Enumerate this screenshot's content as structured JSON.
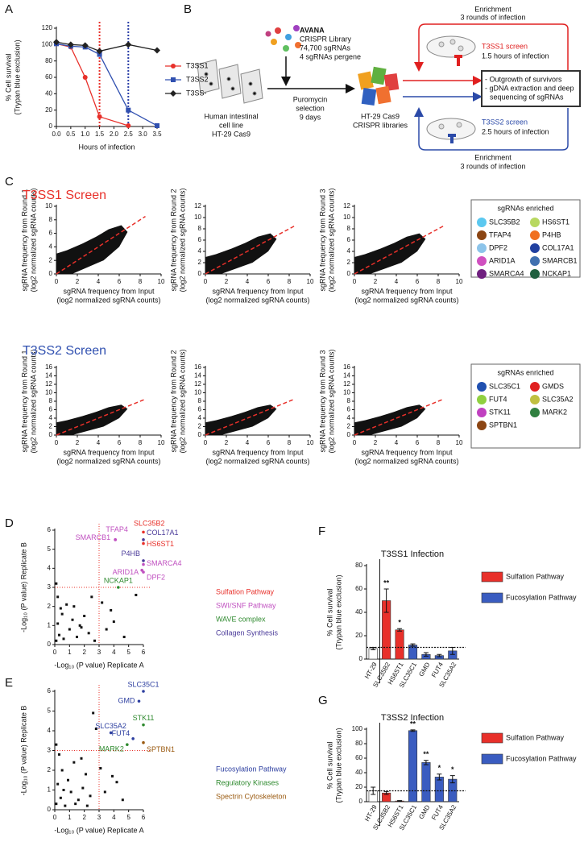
{
  "panel_labels": [
    "A",
    "B",
    "C",
    "D",
    "E",
    "F",
    "G"
  ],
  "diagram": {
    "library": [
      "AVANA",
      "CRISPR Library",
      "74,700 sgRNAs",
      "4 sgRNAs pergene"
    ],
    "cell_line": [
      "Human intestinal",
      "cell line",
      "HT-29 Cas9"
    ],
    "selection": [
      "Puromycin",
      "selection",
      "9 days"
    ],
    "libraries": [
      "HT-29 Cas9",
      "CRISPR libraries"
    ],
    "enrichment_top": [
      "Enrichment",
      "3 rounds of infection"
    ],
    "screen1": [
      "T3SS1 screen",
      "1.5 hours of infection"
    ],
    "output": [
      "- Outgrowth of survivors",
      "- gDNA extraction and deep",
      "sequencing of sgRNAs"
    ],
    "screen2": [
      "T3SS2 screen",
      "2.5 hours of infection"
    ],
    "enrichment_bottom": [
      "Enrichment",
      "3 rounds of infection"
    ]
  },
  "chart_data": [
    {
      "type": "line",
      "x": [
        0,
        0.5,
        1,
        1.5,
        2.5,
        3.5
      ],
      "xlim": [
        0,
        3.5
      ],
      "xticks": [
        {
          "value": 0,
          "label": "0.0"
        },
        0.5,
        {
          "value": 1,
          "label": "1.0"
        },
        1.5,
        {
          "value": 2,
          "label": "2.0"
        },
        2.5,
        {
          "value": 3,
          "label": "3.0"
        },
        3.5
      ],
      "ylim": [
        0,
        120
      ],
      "yticks": [
        0,
        20,
        40,
        60,
        80,
        100,
        120
      ],
      "xlabel": "Hours of infection",
      "ylabel": [
        "% Cell survival",
        "(Trypan blue exclusion)"
      ],
      "vlines": [
        {
          "x": 1.5,
          "color": "#e8302a"
        },
        {
          "x": 2.5,
          "color": "#2b3fa8"
        }
      ],
      "series": [
        {
          "name": "T3SS1",
          "color": "#e8302a",
          "marker": "circle",
          "values": [
            101,
            97,
            60,
            12,
            1,
            null
          ]
        },
        {
          "name": "T3SS2",
          "color": "#3050b0",
          "marker": "square",
          "values": [
            101,
            98,
            97,
            88,
            20,
            1
          ]
        },
        {
          "name": "T3SS-",
          "color": "#222222",
          "marker": "diamond",
          "values": [
            103,
            100,
            99,
            92,
            100,
            93
          ]
        }
      ]
    },
    {
      "type": "scatter",
      "title": "T3SS1 Screen",
      "title_color": "#e8302a",
      "xlim": [
        0,
        10
      ],
      "xticks": [
        0,
        2,
        4,
        6,
        8,
        10
      ],
      "ylim": [
        0,
        10
      ],
      "yticks": [
        0,
        2,
        4,
        6,
        8,
        10
      ],
      "xlabel": [
        "sgRNA frequency from Input",
        "(log2 normalized sgRNA counts)"
      ],
      "ylabel": [
        "sgRNA frequency from Round 1",
        "(log2 normalized sgRNA counts)"
      ],
      "diagonal": "#e8302a",
      "legend_title": "sgRNAs enriched",
      "legend": [
        {
          "name": "SLC35B2",
          "color": "#5bc8f0"
        },
        {
          "name": "HS6ST1",
          "color": "#b8d860"
        },
        {
          "name": "TFAP4",
          "color": "#8b4513"
        },
        {
          "name": "P4HB",
          "color": "#f07020"
        },
        {
          "name": "DPF2",
          "color": "#8cc4ea"
        },
        {
          "name": "COL17A1",
          "color": "#2040a0"
        },
        {
          "name": "ARID1A",
          "color": "#d050c0"
        },
        {
          "name": "SMARCB1",
          "color": "#4070b0"
        },
        {
          "name": "SMARCA4",
          "color": "#702080"
        },
        {
          "name": "NCKAP1",
          "color": "#206040"
        }
      ]
    },
    {
      "type": "scatter",
      "xlim": [
        0,
        10
      ],
      "xticks": [
        0,
        2,
        4,
        6,
        8,
        10
      ],
      "ylim": [
        0,
        12
      ],
      "yticks": [
        0,
        2,
        4,
        6,
        8,
        10,
        12
      ],
      "xlabel": [
        "sgRNA frequency from Input",
        "(log2 normalized sgRNA counts)"
      ],
      "ylabel": [
        "sgRNA frequency from Round 2",
        "(log2 normalized sgRNA counts)"
      ],
      "diagonal": "#e8302a"
    },
    {
      "type": "scatter",
      "xlim": [
        0,
        10
      ],
      "xticks": [
        0,
        2,
        4,
        6,
        8,
        10
      ],
      "ylim": [
        0,
        12
      ],
      "yticks": [
        0,
        2,
        4,
        6,
        8,
        10,
        12
      ],
      "xlabel": [
        "sgRNA frequency from Input",
        "(log2 normalized sgRNA counts)"
      ],
      "ylabel": [
        "sgRNA frequency from Round 3",
        "(log2 normalized sgRNA counts)"
      ],
      "diagonal": "#e8302a"
    },
    {
      "type": "scatter",
      "title": "T3SS2 Screen",
      "title_color": "#3050b0",
      "xlim": [
        0,
        10
      ],
      "xticks": [
        0,
        2,
        4,
        6,
        8,
        10
      ],
      "ylim": [
        0,
        16
      ],
      "yticks": [
        0,
        2,
        4,
        6,
        8,
        10,
        12,
        14,
        16
      ],
      "xlabel": [
        "sgRNA frequency from Input",
        "(log2 normalized sgRNA counts)"
      ],
      "ylabel": [
        "sgRNA frequency from Round 1",
        "(log2 normalized sgRNA counts)"
      ],
      "diagonal": "#e8302a",
      "legend_title": "sgRNAs enriched",
      "legend": [
        {
          "name": "SLC35C1",
          "color": "#2050b0"
        },
        {
          "name": "GMDS",
          "color": "#e02020"
        },
        {
          "name": "FUT4",
          "color": "#90d040"
        },
        {
          "name": "SLC35A2",
          "color": "#c0c040"
        },
        {
          "name": "STK11",
          "color": "#c040c0"
        },
        {
          "name": "MARK2",
          "color": "#308040"
        },
        {
          "name": "SPTBN1",
          "color": "#8b4513"
        }
      ]
    },
    {
      "type": "scatter",
      "xlim": [
        0,
        10
      ],
      "xticks": [
        0,
        2,
        4,
        6,
        8,
        10
      ],
      "ylim": [
        0,
        16
      ],
      "yticks": [
        0,
        2,
        4,
        6,
        8,
        10,
        12,
        14,
        16
      ],
      "xlabel": [
        "sgRNA frequency from Input",
        "(log2 normalized sgRNA counts)"
      ],
      "ylabel": [
        "sgRNA frequency from Round 2",
        "(log2 normalized sgRNA counts)"
      ],
      "diagonal": "#e8302a"
    },
    {
      "type": "scatter",
      "xlim": [
        0,
        10
      ],
      "xticks": [
        0,
        2,
        4,
        6,
        8,
        10
      ],
      "ylim": [
        0,
        16
      ],
      "yticks": [
        0,
        2,
        4,
        6,
        8,
        10,
        12,
        14,
        16
      ],
      "xlabel": [
        "sgRNA frequency from Input",
        "(log2 normalized sgRNA counts)"
      ],
      "ylabel": [
        "sgRNA frequency from Round 3",
        "(log2 normalized sgRNA counts)"
      ],
      "diagonal": "#e8302a"
    },
    {
      "type": "scatter",
      "xlim": [
        0,
        6
      ],
      "xticks": [
        0,
        1,
        2,
        3,
        4,
        5,
        6
      ],
      "ylim": [
        0,
        6
      ],
      "yticks": [
        0,
        1,
        2,
        3,
        4,
        5,
        6
      ],
      "xlabel": "-Log₁₀ (P value) Replicate A",
      "ylabel": "-Log₁₀ (P value) Replicate B",
      "threshold_x": 3,
      "threshold_y": 3,
      "threshold_color": "#e8302a",
      "points": [
        {
          "label": "SLC35B2",
          "x": 6,
          "y": 5.9,
          "color": "#e8302a"
        },
        {
          "label": "COL17A1",
          "x": 6,
          "y": 5.5,
          "color": "#4b3b9a"
        },
        {
          "label": "HS6ST1",
          "x": 6,
          "y": 5.3,
          "color": "#e8302a"
        },
        {
          "label": "TFAP4",
          "x": 4.1,
          "y": 5.5,
          "color": "#c050c0"
        },
        {
          "label": "SMARCB1",
          "x": 4.1,
          "y": 5.5,
          "color": "#c050c0"
        },
        {
          "label": "P4HB",
          "x": 6,
          "y": 4.4,
          "color": "#4b3b9a"
        },
        {
          "label": "SMARCA4",
          "x": 6,
          "y": 4.2,
          "color": "#c050c0"
        },
        {
          "label": "ARID1A",
          "x": 5.9,
          "y": 3.9,
          "color": "#c050c0"
        },
        {
          "label": "DPF2",
          "x": 6,
          "y": 3.8,
          "color": "#c050c0"
        },
        {
          "label": "NCKAP1",
          "x": 4.3,
          "y": 3.0,
          "color": "#2f8a2f"
        }
      ],
      "other": {
        "x": [
          0.1,
          0.2,
          0.3,
          0.5,
          0.6,
          0.8,
          1,
          1.2,
          1.5,
          1.8,
          2,
          2.3,
          2.5,
          0.2,
          0.1,
          3.5,
          4,
          3.2,
          5.5,
          4.7,
          3.8,
          1.3,
          0.4,
          2.7,
          1.7
        ],
        "y": [
          0.2,
          1.1,
          0.5,
          1.6,
          0.3,
          2.1,
          0.8,
          1.3,
          0.4,
          0.9,
          1.5,
          0.6,
          2.5,
          2.5,
          3.2,
          0.8,
          1.2,
          2.2,
          2.6,
          0.4,
          1.8,
          2.0,
          1.9,
          0.2,
          1.0
        ]
      },
      "legend": [
        {
          "name": "Sulfation Pathway",
          "color": "#e8302a"
        },
        {
          "name": "SWI/SNF Pathway",
          "color": "#c050c0"
        },
        {
          "name": "WAVE complex",
          "color": "#2f8a2f"
        },
        {
          "name": "Collagen Synthesis",
          "color": "#4b3b9a"
        }
      ]
    },
    {
      "type": "scatter",
      "xlim": [
        0,
        6
      ],
      "xticks": [
        0,
        1,
        2,
        3,
        4,
        5,
        6
      ],
      "ylim": [
        0,
        6
      ],
      "yticks": [
        0,
        1,
        2,
        3,
        4,
        5,
        6
      ],
      "xlabel": "-Log₁₀ (P value) Replicate A",
      "ylabel": "-Log₁₀ (P value) Replicate B",
      "threshold_x": 3,
      "threshold_y": 3,
      "threshold_color": "#e8302a",
      "points": [
        {
          "label": "SLC35C1",
          "x": 6,
          "y": 6,
          "color": "#2d3fa0"
        },
        {
          "label": "GMD",
          "x": 5.7,
          "y": 5.5,
          "color": "#2d3fa0"
        },
        {
          "label": "STK11",
          "x": 6,
          "y": 4.3,
          "color": "#2f8a2f"
        },
        {
          "label": "SLC35A2",
          "x": 3.8,
          "y": 3.9,
          "color": "#2d3fa0"
        },
        {
          "label": "FUT4",
          "x": 5.3,
          "y": 3.6,
          "color": "#2d3fa0"
        },
        {
          "label": "MARK2",
          "x": 4.9,
          "y": 3.3,
          "color": "#2f8a2f"
        },
        {
          "label": "SPTBN1",
          "x": 6,
          "y": 3.4,
          "color": "#9a5a10"
        }
      ],
      "other": {
        "x": [
          0.1,
          0.2,
          0.4,
          0.5,
          0.7,
          0.9,
          1.1,
          1.3,
          1.6,
          1.9,
          2.1,
          2.4,
          2.6,
          0.3,
          0.1,
          3.4,
          4.2,
          3.1,
          2.8,
          4.6,
          3.9,
          1.4,
          0.6,
          2.2,
          1.8
        ],
        "y": [
          0.3,
          1.3,
          0.6,
          2.0,
          0.2,
          1.5,
          0.9,
          2.4,
          0.5,
          1.1,
          1.8,
          0.7,
          4.9,
          2.8,
          3.3,
          0.9,
          1.4,
          2.1,
          4.1,
          0.5,
          1.7,
          0.3,
          1.0,
          0.2,
          2.6
        ]
      },
      "legend": [
        {
          "name": "Fucosylation Pathway",
          "color": "#2d3fa0"
        },
        {
          "name": "Regulatory Kinases",
          "color": "#2f8a2f"
        },
        {
          "name": "Spectrin Cytoskeleton",
          "color": "#9a5a10"
        }
      ]
    },
    {
      "type": "bar",
      "title": "T3SS1 Infection",
      "categories": [
        "HT-29",
        "SLC35B2",
        "HS6ST1",
        "SLC35C1",
        "GMD",
        "FUT4",
        "SLC35A2"
      ],
      "values": [
        9,
        50,
        25,
        12,
        4,
        3,
        7
      ],
      "errors": [
        1,
        10,
        1,
        1,
        1.5,
        1,
        3
      ],
      "colors": [
        "#ffffff",
        "#e8302a",
        "#e8302a",
        "#3a5cc0",
        "#3a5cc0",
        "#3a5cc0",
        "#3a5cc0"
      ],
      "significance": [
        null,
        "**",
        "*",
        null,
        null,
        null,
        null
      ],
      "reference_line": 10,
      "ylim": [
        0,
        80
      ],
      "yticks": [
        0,
        20,
        40,
        60,
        80
      ],
      "ylabel": [
        "% Cell survival",
        "(Trypan blue exclusion)"
      ],
      "legend": [
        {
          "name": "Sulfation Pathway",
          "color": "#e8302a"
        },
        {
          "name": "Fucosylation Pathway",
          "color": "#3a5cc0"
        }
      ]
    },
    {
      "type": "bar",
      "title": "T3SS2 Infection",
      "categories": [
        "HT-29",
        "SLC35B2",
        "HS6ST1",
        "SLC35C1",
        "GMD",
        "FUT4",
        "SLC35A2"
      ],
      "values": [
        15,
        12,
        1,
        98,
        54,
        34,
        31
      ],
      "errors": [
        5,
        2,
        0.5,
        1,
        3,
        4,
        5
      ],
      "colors": [
        "#ffffff",
        "#e8302a",
        "#e8302a",
        "#3a5cc0",
        "#3a5cc0",
        "#3a5cc0",
        "#3a5cc0"
      ],
      "significance": [
        null,
        null,
        null,
        "**",
        "**",
        "*",
        "*"
      ],
      "reference_line": 15,
      "ylim": [
        0,
        100
      ],
      "yticks": [
        0,
        20,
        40,
        60,
        80,
        100
      ],
      "ylabel": [
        "% Cell survival",
        "(Trypan blue exclusion)"
      ],
      "legend": [
        {
          "name": "Sulfation Pathway",
          "color": "#e8302a"
        },
        {
          "name": "Fucosylation Pathway",
          "color": "#3a5cc0"
        }
      ]
    }
  ]
}
